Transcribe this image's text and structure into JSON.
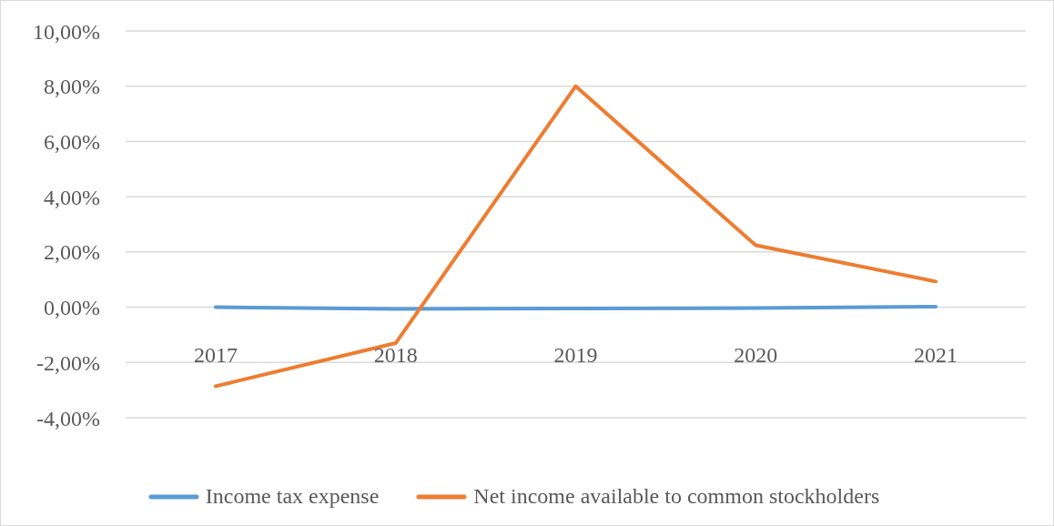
{
  "chart_data": {
    "type": "line",
    "categories": [
      "2017",
      "2018",
      "2019",
      "2020",
      "2021"
    ],
    "series": [
      {
        "name": "Income tax expense",
        "color": "#5b9bd5",
        "values": [
          0.0,
          -0.06,
          -0.05,
          -0.03,
          0.02
        ]
      },
      {
        "name": "Net income available to common stockholders",
        "color": "#ed7d31",
        "values": [
          -2.86,
          -1.3,
          8.0,
          2.24,
          0.93
        ]
      }
    ],
    "ylim": [
      -4,
      10
    ],
    "yticks": [
      {
        "value": -4,
        "label": "-4,00%"
      },
      {
        "value": -2,
        "label": "-2,00%"
      },
      {
        "value": 0,
        "label": "0,00%"
      },
      {
        "value": 2,
        "label": "2,00%"
      },
      {
        "value": 4,
        "label": "4,00%"
      },
      {
        "value": 6,
        "label": "6,00%"
      },
      {
        "value": 8,
        "label": "8,00%"
      },
      {
        "value": 10,
        "label": "10,00%"
      }
    ],
    "grid": "y",
    "legend": "bottom",
    "marker": "none",
    "line_style": "solid"
  }
}
